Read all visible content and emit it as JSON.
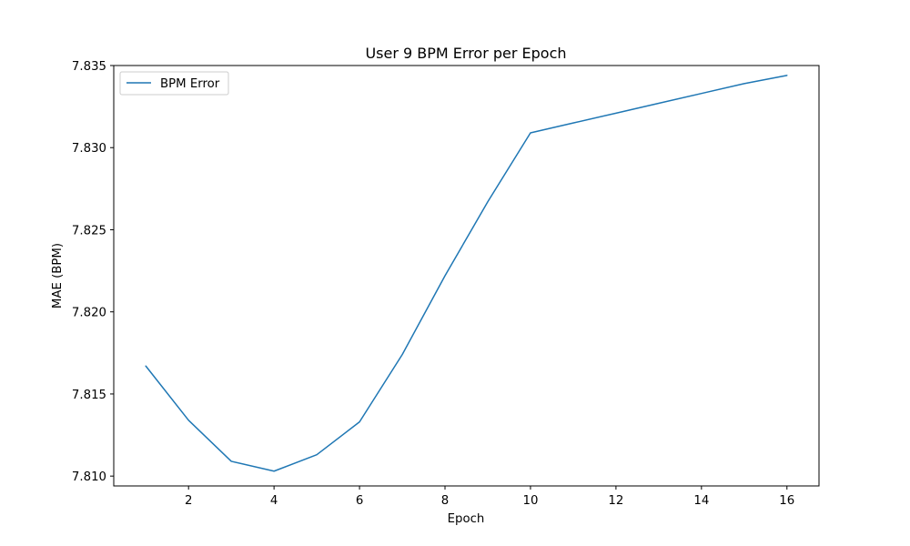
{
  "chart_data": {
    "type": "line",
    "title": "User 9 BPM Error per Epoch",
    "xlabel": "Epoch",
    "ylabel": "MAE (BPM)",
    "xlim": [
      0.25,
      16.75
    ],
    "ylim": [
      7.8094,
      7.835
    ],
    "xticks": [
      2,
      4,
      6,
      8,
      10,
      12,
      14,
      16
    ],
    "yticks": [
      7.81,
      7.815,
      7.82,
      7.825,
      7.83,
      7.835
    ],
    "xtick_labels": [
      "2",
      "4",
      "6",
      "8",
      "10",
      "12",
      "14",
      "16"
    ],
    "ytick_labels": [
      "7.810",
      "7.815",
      "7.820",
      "7.825",
      "7.830",
      "7.835"
    ],
    "grid": false,
    "legend_position": "upper-left",
    "series": [
      {
        "name": "BPM Error",
        "color": "#1f77b4",
        "x": [
          1,
          2,
          3,
          4,
          5,
          6,
          7,
          8,
          9,
          10,
          11,
          12,
          13,
          14,
          15,
          16
        ],
        "y": [
          7.8167,
          7.8134,
          7.8109,
          7.8103,
          7.8113,
          7.8133,
          7.8174,
          7.8222,
          7.8267,
          7.8309,
          7.8315,
          7.8321,
          7.8327,
          7.8333,
          7.8339,
          7.8344
        ]
      }
    ]
  }
}
